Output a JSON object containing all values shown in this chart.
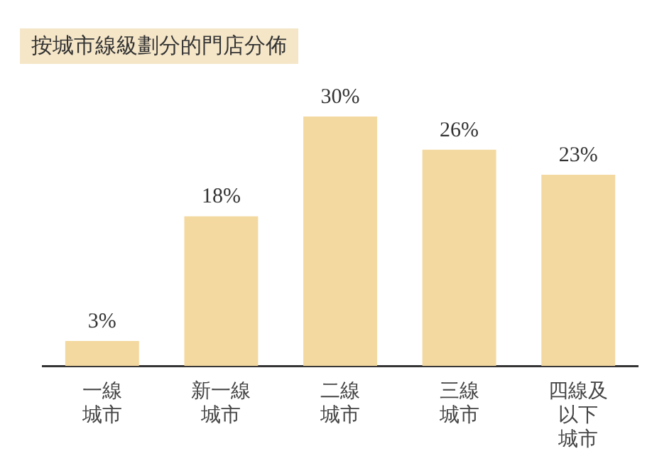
{
  "chart_data": {
    "type": "bar",
    "title": "按城市線級劃分的門店分佈",
    "categories": [
      "一線城市",
      "新一線城市",
      "二線城市",
      "三線城市",
      "四線及以下城市"
    ],
    "values": [
      3,
      18,
      30,
      26,
      23
    ],
    "color": "#f3d9a0",
    "data_labels": true,
    "value_labels": [
      "3%",
      "18%",
      "30%",
      "26%",
      "23%"
    ],
    "grid": false,
    "legend": false
  }
}
